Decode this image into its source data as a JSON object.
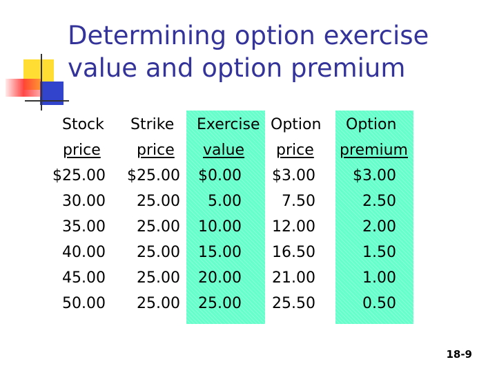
{
  "title": {
    "line1": "Determining option exercise",
    "line2": "value and option premium"
  },
  "table": {
    "columns": [
      {
        "header1": "Stock",
        "header2": "price",
        "cells": [
          "$25.00",
          "30.00",
          "35.00",
          "40.00",
          "45.00",
          "50.00"
        ]
      },
      {
        "header1": "Strike",
        "header2": "price",
        "cells": [
          "$25.00",
          "25.00",
          "25.00",
          "25.00",
          "25.00",
          "25.00"
        ]
      },
      {
        "header1": "Exercise",
        "header2": "value",
        "cells": [
          "$0.00",
          "5.00",
          "10.00",
          "15.00",
          "20.00",
          "25.00"
        ]
      },
      {
        "header1": "Option",
        "header2": "price",
        "cells": [
          "$3.00",
          "7.50",
          "12.00",
          "16.50",
          "21.00",
          "25.50"
        ]
      },
      {
        "header1": "Option",
        "header2": "premium",
        "cells": [
          "$3.00",
          "2.50",
          "2.00",
          "1.50",
          "1.00",
          "0.50"
        ]
      }
    ],
    "highlight_color": "#66ffcc"
  },
  "footer": {
    "slide_number": "18-9"
  },
  "colors": {
    "title": "#333399"
  }
}
